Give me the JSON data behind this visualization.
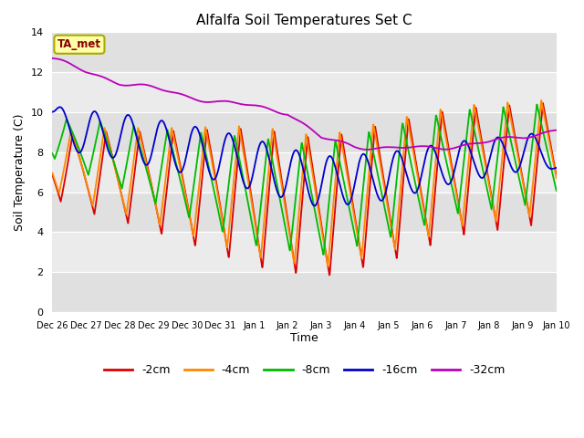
{
  "title": "Alfalfa Soil Temperatures Set C",
  "xlabel": "Time",
  "ylabel": "Soil Temperature (C)",
  "ylim": [
    0,
    14
  ],
  "yticks": [
    0,
    2,
    4,
    6,
    8,
    10,
    12,
    14
  ],
  "colors": {
    "-2cm": "#dd0000",
    "-4cm": "#ff8800",
    "-8cm": "#00bb00",
    "-16cm": "#0000cc",
    "-32cm": "#bb00bb"
  },
  "legend_labels": [
    "-2cm",
    "-4cm",
    "-8cm",
    "-16cm",
    "-32cm"
  ],
  "bg_color": "#e8e8e8",
  "ta_met_label": "TA_met",
  "ta_met_color": "#880000",
  "ta_met_bg": "#ffffaa",
  "ta_met_edge": "#aaaa00"
}
